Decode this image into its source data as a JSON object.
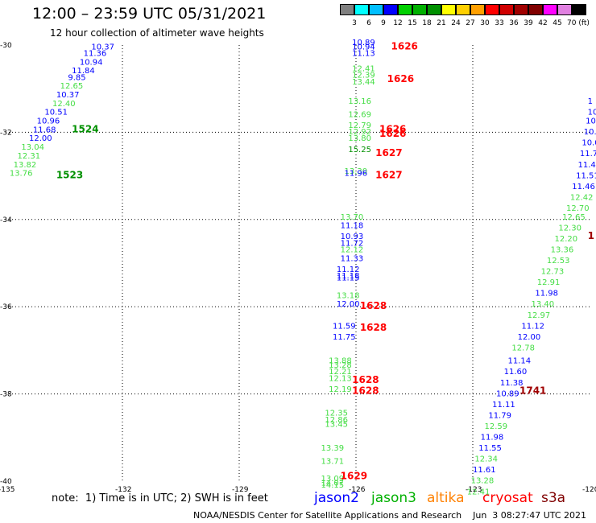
{
  "header": {
    "title": "12:00 – 23:59 UTC 05/31/2021",
    "subtitle": "12 hour collection of altimeter wave heights"
  },
  "colorbar": {
    "colors": [
      "#808080",
      "#00ffff",
      "#00bfff",
      "#0000ff",
      "#00d000",
      "#00b000",
      "#009000",
      "#ffff00",
      "#ffd000",
      "#ffa000",
      "#ff0000",
      "#d00000",
      "#a00000",
      "#800000",
      "#ff00ff",
      "#e080e0",
      "#000000"
    ],
    "labels": [
      "3",
      "6",
      "9",
      "12",
      "15",
      "18",
      "21",
      "24",
      "27",
      "30",
      "33",
      "36",
      "39",
      "42",
      "45",
      "70 (ft)"
    ]
  },
  "footer": {
    "note": "note:  1) Time is in UTC; 2) SWH is in feet",
    "credit": "NOAA/NESDIS Center for Satellite Applications and Research    Jun  3 08:27:47 UTC 2021"
  },
  "legend": [
    {
      "name": "jason2",
      "color": "#0000ff"
    },
    {
      "name": "jason3",
      "color": "#00b000"
    },
    {
      "name": "altika",
      "color": "#ff8000"
    },
    {
      "name": "cryosat",
      "color": "#ff0000"
    },
    {
      "name": "s3a",
      "color": "#800000"
    }
  ],
  "chart_data": {
    "type": "scatter",
    "title": "12:00 – 23:59 UTC 05/31/2021",
    "subtitle": "12 hour collection of altimeter wave heights",
    "xlim": [
      -135,
      -120
    ],
    "ylim": [
      -40,
      -30
    ],
    "x_ticks": [
      "-135",
      "-132",
      "-129",
      "-126",
      "-123",
      "-120"
    ],
    "y_ticks": [
      "-30",
      "-32",
      "-34",
      "-36",
      "-38",
      "-40"
    ],
    "grid": true,
    "colors": {
      "blue": "#0000ff",
      "green": "#44dd44",
      "red": "#ff0000",
      "dgreen": "#009000",
      "dred": "#a00000"
    },
    "points": [
      {
        "x": -132.8,
        "y": -30.1,
        "v": "10.37",
        "c": "blue"
      },
      {
        "x": -133.0,
        "y": -30.25,
        "v": "11.36",
        "c": "blue"
      },
      {
        "x": -133.1,
        "y": -30.45,
        "v": "10.94",
        "c": "blue"
      },
      {
        "x": -133.3,
        "y": -30.65,
        "v": "11.84",
        "c": "blue"
      },
      {
        "x": -133.4,
        "y": -30.8,
        "v": "9.85",
        "c": "blue"
      },
      {
        "x": -133.6,
        "y": -31.0,
        "v": "12.65",
        "c": "green"
      },
      {
        "x": -133.7,
        "y": -31.2,
        "v": "10.37",
        "c": "blue"
      },
      {
        "x": -133.8,
        "y": -31.4,
        "v": "12.40",
        "c": "green"
      },
      {
        "x": -134.0,
        "y": -31.6,
        "v": "10.51",
        "c": "blue"
      },
      {
        "x": -134.2,
        "y": -31.8,
        "v": "10.96",
        "c": "blue"
      },
      {
        "x": -134.3,
        "y": -32.0,
        "v": "11.68",
        "c": "blue"
      },
      {
        "x": -134.4,
        "y": -32.2,
        "v": "12.00",
        "c": "blue"
      },
      {
        "x": -134.6,
        "y": -32.4,
        "v": "13.04",
        "c": "green"
      },
      {
        "x": -134.7,
        "y": -32.6,
        "v": "12.31",
        "c": "green"
      },
      {
        "x": -134.8,
        "y": -32.8,
        "v": "13.82",
        "c": "green"
      },
      {
        "x": -134.9,
        "y": -33.0,
        "v": "13.76",
        "c": "green"
      },
      {
        "x": -126.1,
        "y": -30.0,
        "v": "10.89",
        "c": "blue"
      },
      {
        "x": -126.1,
        "y": -30.1,
        "v": "10.94",
        "c": "blue"
      },
      {
        "x": -126.1,
        "y": -30.25,
        "v": "11.13",
        "c": "blue"
      },
      {
        "x": -126.1,
        "y": -30.6,
        "v": "12.41",
        "c": "green"
      },
      {
        "x": -126.1,
        "y": -30.75,
        "v": "12.39",
        "c": "green"
      },
      {
        "x": -126.1,
        "y": -30.9,
        "v": "13.44",
        "c": "green"
      },
      {
        "x": -126.2,
        "y": -31.35,
        "v": "13.16",
        "c": "green"
      },
      {
        "x": -126.2,
        "y": -31.65,
        "v": "12.69",
        "c": "green"
      },
      {
        "x": -126.2,
        "y": -31.9,
        "v": "12.79",
        "c": "green"
      },
      {
        "x": -126.2,
        "y": -32.05,
        "v": "12.92",
        "c": "green"
      },
      {
        "x": -126.2,
        "y": -32.2,
        "v": "13.80",
        "c": "green"
      },
      {
        "x": -126.2,
        "y": -32.45,
        "v": "15.25",
        "c": "dgreen"
      },
      {
        "x": -126.3,
        "y": -32.95,
        "v": "13.30",
        "c": "green"
      },
      {
        "x": -126.3,
        "y": -33.0,
        "v": "11.96",
        "c": "blue"
      },
      {
        "x": -126.4,
        "y": -34.0,
        "v": "13.70",
        "c": "green"
      },
      {
        "x": -126.4,
        "y": -34.2,
        "v": "11.18",
        "c": "blue"
      },
      {
        "x": -126.4,
        "y": -34.45,
        "v": "10.93",
        "c": "blue"
      },
      {
        "x": -126.4,
        "y": -34.6,
        "v": "11.72",
        "c": "blue"
      },
      {
        "x": -126.4,
        "y": -34.75,
        "v": "12.12",
        "c": "green"
      },
      {
        "x": -126.4,
        "y": -34.95,
        "v": "11.33",
        "c": "blue"
      },
      {
        "x": -126.5,
        "y": -35.2,
        "v": "11.12",
        "c": "blue"
      },
      {
        "x": -126.5,
        "y": -35.35,
        "v": "11.18",
        "c": "blue"
      },
      {
        "x": -126.5,
        "y": -35.4,
        "v": "11.15",
        "c": "blue"
      },
      {
        "x": -126.5,
        "y": -35.8,
        "v": "13.18",
        "c": "green"
      },
      {
        "x": -126.5,
        "y": -36.0,
        "v": "12.00",
        "c": "blue"
      },
      {
        "x": -126.6,
        "y": -36.5,
        "v": "11.59",
        "c": "blue"
      },
      {
        "x": -126.6,
        "y": -36.75,
        "v": "11.75",
        "c": "blue"
      },
      {
        "x": -126.7,
        "y": -37.3,
        "v": "13.88",
        "c": "green"
      },
      {
        "x": -126.7,
        "y": -37.4,
        "v": "13.28",
        "c": "green"
      },
      {
        "x": -126.7,
        "y": -37.55,
        "v": "12.21",
        "c": "green"
      },
      {
        "x": -126.7,
        "y": -37.7,
        "v": "12.13",
        "c": "green"
      },
      {
        "x": -126.7,
        "y": -37.95,
        "v": "12.19",
        "c": "green"
      },
      {
        "x": -126.8,
        "y": -38.5,
        "v": "12.35",
        "c": "green"
      },
      {
        "x": -126.8,
        "y": -38.65,
        "v": "12.86",
        "c": "green"
      },
      {
        "x": -126.8,
        "y": -38.75,
        "v": "13.45",
        "c": "green"
      },
      {
        "x": -126.9,
        "y": -39.3,
        "v": "13.39",
        "c": "green"
      },
      {
        "x": -126.9,
        "y": -39.6,
        "v": "13.71",
        "c": "green"
      },
      {
        "x": -126.9,
        "y": -40.0,
        "v": "13.09",
        "c": "green"
      },
      {
        "x": -126.9,
        "y": -40.1,
        "v": "14.07",
        "c": "green"
      },
      {
        "x": -126.9,
        "y": -40.15,
        "v": "14.15",
        "c": "green"
      },
      {
        "x": -120.05,
        "y": -31.35,
        "v": "1",
        "c": "blue"
      },
      {
        "x": -120.05,
        "y": -31.6,
        "v": "10",
        "c": "blue"
      },
      {
        "x": -120.1,
        "y": -31.8,
        "v": "10.",
        "c": "blue"
      },
      {
        "x": -120.15,
        "y": -32.05,
        "v": "10.",
        "c": "blue"
      },
      {
        "x": -120.2,
        "y": -32.3,
        "v": "10.0",
        "c": "blue"
      },
      {
        "x": -120.25,
        "y": -32.55,
        "v": "11.7",
        "c": "blue"
      },
      {
        "x": -120.3,
        "y": -32.8,
        "v": "11.45",
        "c": "blue"
      },
      {
        "x": -120.35,
        "y": -33.05,
        "v": "11.51",
        "c": "blue"
      },
      {
        "x": -120.45,
        "y": -33.3,
        "v": "11.46",
        "c": "blue"
      },
      {
        "x": -120.5,
        "y": -33.55,
        "v": "12.42",
        "c": "green"
      },
      {
        "x": -120.6,
        "y": -33.8,
        "v": "12.70",
        "c": "green"
      },
      {
        "x": -120.7,
        "y": -34.0,
        "v": "12.65",
        "c": "green"
      },
      {
        "x": -120.8,
        "y": -34.25,
        "v": "12.30",
        "c": "green"
      },
      {
        "x": -120.9,
        "y": -34.5,
        "v": "12.20",
        "c": "green"
      },
      {
        "x": -121.0,
        "y": -34.75,
        "v": "13.36",
        "c": "green"
      },
      {
        "x": -121.1,
        "y": -35.0,
        "v": "12.53",
        "c": "green"
      },
      {
        "x": -121.25,
        "y": -35.25,
        "v": "12.73",
        "c": "green"
      },
      {
        "x": -121.35,
        "y": -35.5,
        "v": "12.91",
        "c": "green"
      },
      {
        "x": -121.4,
        "y": -35.75,
        "v": "11.98",
        "c": "blue"
      },
      {
        "x": -121.5,
        "y": -36.0,
        "v": "13.40",
        "c": "green"
      },
      {
        "x": -121.6,
        "y": -36.25,
        "v": "12.97",
        "c": "green"
      },
      {
        "x": -121.75,
        "y": -36.5,
        "v": "11.12",
        "c": "blue"
      },
      {
        "x": -121.85,
        "y": -36.75,
        "v": "12.00",
        "c": "blue"
      },
      {
        "x": -122.0,
        "y": -37.0,
        "v": "12.78",
        "c": "green"
      },
      {
        "x": -122.1,
        "y": -37.3,
        "v": "11.14",
        "c": "blue"
      },
      {
        "x": -122.2,
        "y": -37.55,
        "v": "11.60",
        "c": "blue"
      },
      {
        "x": -122.3,
        "y": -37.8,
        "v": "11.38",
        "c": "blue"
      },
      {
        "x": -122.4,
        "y": -38.05,
        "v": "10.89",
        "c": "blue"
      },
      {
        "x": -122.5,
        "y": -38.3,
        "v": "11.11",
        "c": "blue"
      },
      {
        "x": -122.6,
        "y": -38.55,
        "v": "11.79",
        "c": "blue"
      },
      {
        "x": -122.7,
        "y": -38.8,
        "v": "12.59",
        "c": "green"
      },
      {
        "x": -122.8,
        "y": -39.05,
        "v": "11.98",
        "c": "blue"
      },
      {
        "x": -122.85,
        "y": -39.3,
        "v": "11.55",
        "c": "blue"
      },
      {
        "x": -122.95,
        "y": -39.55,
        "v": "12.34",
        "c": "green"
      },
      {
        "x": -123.0,
        "y": -39.8,
        "v": "11.61",
        "c": "blue"
      },
      {
        "x": -123.05,
        "y": -40.05,
        "v": "13.28",
        "c": "green"
      },
      {
        "x": -123.15,
        "y": -40.3,
        "v": "12.41",
        "c": "green"
      }
    ],
    "hour_labels": [
      {
        "x": -133.3,
        "y": -32.0,
        "v": "1524",
        "c": "dgreen"
      },
      {
        "x": -133.7,
        "y": -33.05,
        "v": "1523",
        "c": "dgreen"
      },
      {
        "x": -125.1,
        "y": -30.1,
        "v": "1626",
        "c": "red"
      },
      {
        "x": -125.2,
        "y": -30.85,
        "v": "1626",
        "c": "red"
      },
      {
        "x": -125.4,
        "y": -32.0,
        "v": "1626",
        "c": "red"
      },
      {
        "x": -125.4,
        "y": -32.1,
        "v": "1626",
        "c": "red"
      },
      {
        "x": -125.5,
        "y": -32.55,
        "v": "1627",
        "c": "red"
      },
      {
        "x": -125.5,
        "y": -33.05,
        "v": "1627",
        "c": "red"
      },
      {
        "x": -125.9,
        "y": -36.05,
        "v": "1628",
        "c": "red"
      },
      {
        "x": -125.9,
        "y": -36.55,
        "v": "1628",
        "c": "red"
      },
      {
        "x": -126.1,
        "y": -37.75,
        "v": "1628",
        "c": "red"
      },
      {
        "x": -126.1,
        "y": -38.0,
        "v": "1628",
        "c": "red"
      },
      {
        "x": -126.4,
        "y": -39.95,
        "v": "1629",
        "c": "red"
      },
      {
        "x": -121.8,
        "y": -38.0,
        "v": "1741",
        "c": "dred"
      },
      {
        "x": -120.05,
        "y": -34.45,
        "v": "1",
        "c": "dred"
      }
    ]
  }
}
